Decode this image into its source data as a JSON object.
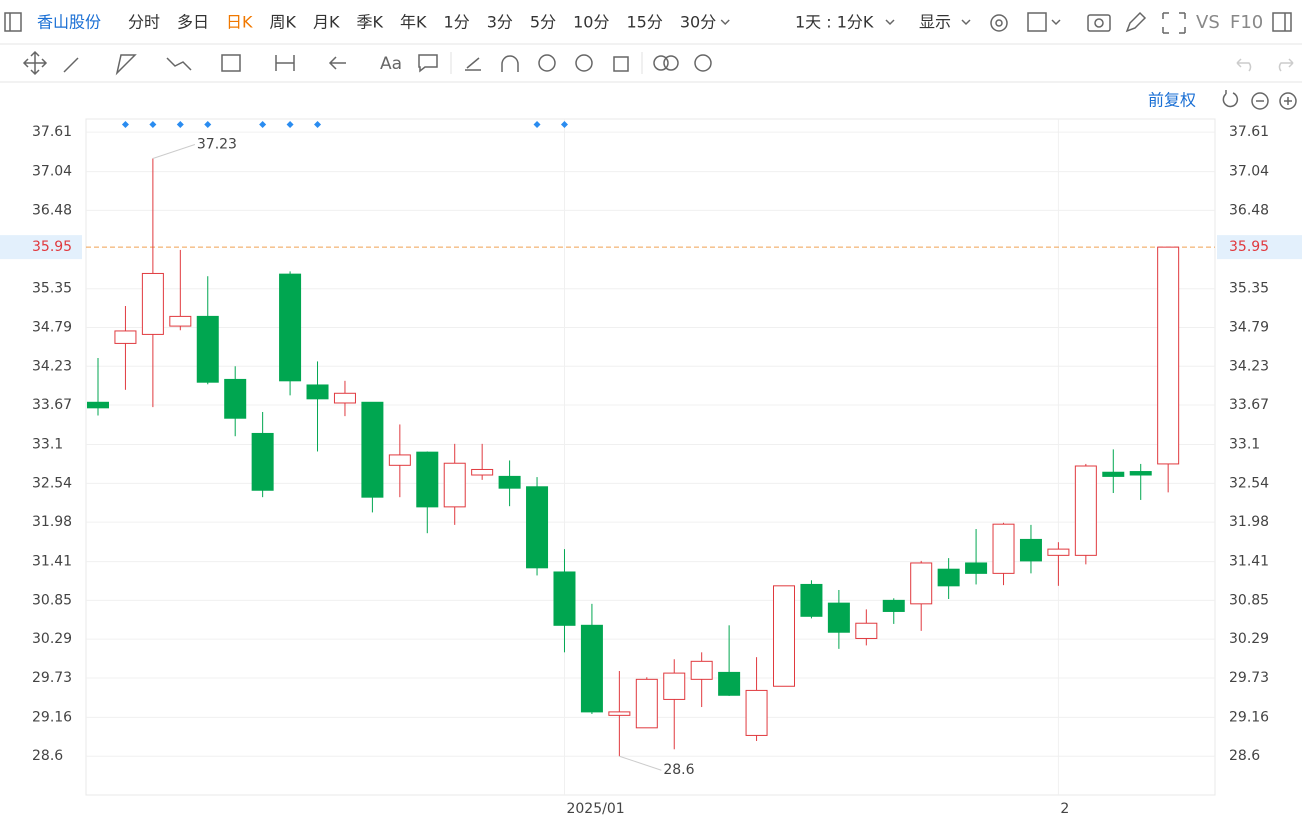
{
  "toolbar": {
    "stock": "香山股份",
    "periods": [
      "分时",
      "多日",
      "日K",
      "周K",
      "月K",
      "季K",
      "年K",
      "1分",
      "3分",
      "5分",
      "10分",
      "15分",
      "30分"
    ],
    "active_period": 2,
    "interval": "1天 : 1分K",
    "display": "显示",
    "vs": "VS",
    "f10": "F10"
  },
  "adjust": "前复权",
  "chart_data": {
    "type": "candlestick",
    "categories": [
      null,
      null,
      null,
      null,
      null,
      null,
      null,
      null,
      null,
      null,
      null,
      null,
      null,
      null,
      null,
      null,
      null,
      "2025/01",
      null,
      null,
      null,
      null,
      null,
      null,
      null,
      null,
      null,
      null,
      null,
      null,
      null,
      null,
      null,
      null,
      null,
      "2",
      null,
      null,
      null,
      null
    ],
    "open": [
      33.71,
      34.56,
      34.69,
      34.81,
      34.95,
      34.04,
      33.26,
      35.56,
      33.96,
      33.7,
      33.71,
      32.8,
      32.99,
      32.2,
      32.66,
      32.64,
      32.49,
      31.26,
      30.49,
      29.19,
      29.01,
      29.42,
      29.71,
      29.81,
      28.9,
      29.61,
      31.08,
      30.81,
      30.3,
      30.85,
      30.8,
      31.3,
      31.39,
      31.24,
      31.73,
      31.5,
      31.5,
      32.7,
      32.71,
      32.82
    ],
    "close": [
      33.63,
      34.74,
      35.57,
      34.95,
      34.0,
      33.48,
      32.44,
      34.02,
      33.76,
      33.84,
      32.34,
      32.95,
      32.2,
      32.83,
      32.74,
      32.47,
      31.32,
      30.49,
      29.24,
      29.24,
      29.71,
      29.8,
      29.97,
      29.48,
      29.55,
      31.06,
      30.62,
      30.39,
      30.52,
      30.69,
      31.39,
      31.06,
      31.24,
      31.95,
      31.42,
      31.59,
      32.79,
      32.64,
      32.66,
      35.95
    ],
    "high": [
      34.35,
      35.1,
      37.23,
      35.91,
      35.53,
      34.23,
      33.57,
      35.6,
      34.3,
      34.02,
      33.71,
      33.39,
      33.0,
      33.11,
      33.11,
      32.87,
      32.63,
      31.59,
      30.8,
      29.83,
      29.74,
      30.0,
      30.1,
      30.49,
      30.03,
      31.06,
      31.14,
      31.0,
      30.72,
      30.88,
      31.42,
      31.46,
      31.88,
      31.97,
      31.94,
      31.69,
      32.82,
      33.03,
      32.82,
      35.95
    ],
    "low": [
      33.52,
      33.89,
      33.64,
      34.75,
      33.97,
      33.22,
      32.34,
      33.81,
      33.0,
      33.51,
      32.12,
      32.34,
      31.82,
      31.94,
      32.59,
      32.21,
      31.21,
      30.1,
      29.21,
      28.6,
      29.01,
      28.7,
      29.31,
      29.47,
      28.82,
      29.61,
      30.59,
      30.15,
      30.2,
      30.51,
      30.41,
      30.87,
      31.08,
      31.07,
      31.24,
      31.06,
      31.37,
      32.4,
      32.3,
      32.41
    ],
    "up_color": "#e0393e",
    "down_color": "#00a650",
    "ylim": [
      28.04,
      37.8
    ],
    "yticks": [
      37.61,
      37.04,
      36.48,
      35.35,
      34.79,
      34.23,
      33.67,
      33.1,
      32.54,
      31.98,
      31.41,
      30.85,
      30.29,
      29.73,
      29.16,
      28.6
    ],
    "current_price": 35.95,
    "annotations": [
      {
        "index": 2,
        "field": "high"
      },
      {
        "index": 19,
        "field": "low"
      }
    ],
    "event_markers": [
      1,
      2,
      3,
      4,
      6,
      7,
      8,
      16,
      17
    ],
    "grid": true
  }
}
